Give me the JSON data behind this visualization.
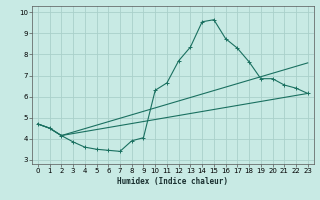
{
  "xlabel": "Humidex (Indice chaleur)",
  "xlim": [
    -0.5,
    23.5
  ],
  "ylim": [
    2.8,
    10.3
  ],
  "xticks": [
    0,
    1,
    2,
    3,
    4,
    5,
    6,
    7,
    8,
    9,
    10,
    11,
    12,
    13,
    14,
    15,
    16,
    17,
    18,
    19,
    20,
    21,
    22,
    23
  ],
  "yticks": [
    3,
    4,
    5,
    6,
    7,
    8,
    9,
    10
  ],
  "bg_color": "#c8eae4",
  "grid_color": "#aad0ca",
  "line_color": "#1a7060",
  "curve1_x": [
    0,
    1,
    2,
    3,
    4,
    5,
    6,
    7,
    8,
    9,
    10,
    11,
    12,
    13,
    14,
    15,
    16,
    17,
    18,
    19,
    20,
    21,
    22,
    23
  ],
  "curve1_y": [
    4.7,
    4.5,
    4.15,
    3.85,
    3.6,
    3.5,
    3.45,
    3.4,
    3.9,
    4.05,
    6.3,
    6.65,
    7.7,
    8.35,
    9.55,
    9.65,
    8.75,
    8.3,
    7.65,
    6.85,
    6.85,
    6.55,
    6.4,
    6.15
  ],
  "curve2_x": [
    0,
    1,
    2,
    23
  ],
  "curve2_y": [
    4.7,
    4.5,
    4.15,
    7.6
  ],
  "curve3_x": [
    0,
    1,
    2,
    23
  ],
  "curve3_y": [
    4.7,
    4.5,
    4.15,
    6.15
  ]
}
